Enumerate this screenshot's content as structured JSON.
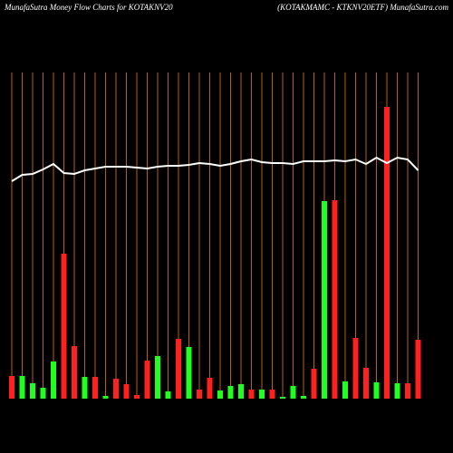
{
  "chart_data": {
    "type": "bar",
    "title": "MunafaSutra  Money Flow  Charts for KOTAKNV20",
    "subtitle": "(KOTAKMAMC -  KTKNV20ETF) MunafaSutra.com",
    "values": [
      25,
      25,
      17,
      12,
      41,
      160,
      58,
      24,
      24,
      3,
      22,
      16,
      4,
      42,
      47,
      8,
      66,
      57,
      10,
      23,
      9,
      14,
      16,
      10,
      10,
      10,
      2,
      14,
      3,
      33,
      218,
      219,
      19,
      67,
      34,
      18,
      322,
      17,
      17,
      65
    ],
    "colors": [
      "#ff2020",
      "#20ff20",
      "#20ff20",
      "#20ff20",
      "#20ff20",
      "#ff2020",
      "#ff2020",
      "#20ff20",
      "#ff2020",
      "#20ff20",
      "#ff2020",
      "#ff2020",
      "#ff2020",
      "#ff2020",
      "#20ff20",
      "#20ff20",
      "#ff2020",
      "#20ff20",
      "#ff2020",
      "#ff2020",
      "#20ff20",
      "#20ff20",
      "#20ff20",
      "#ff2020",
      "#20ff20",
      "#ff2020",
      "#20ff20",
      "#20ff20",
      "#20ff20",
      "#ff2020",
      "#20ff20",
      "#ff2020",
      "#20ff20",
      "#ff2020",
      "#ff2020",
      "#20ff20",
      "#ff2020",
      "#20ff20",
      "#ff2020",
      "#ff2020"
    ],
    "line": {
      "color": "#ffffff",
      "values": [
        240,
        247,
        248,
        253,
        259,
        249,
        248,
        252,
        254,
        256,
        256,
        256,
        255,
        254,
        256,
        257,
        257,
        258,
        260,
        259,
        257,
        259,
        262,
        264,
        261,
        260,
        260,
        259,
        262,
        262,
        262,
        263,
        262,
        264,
        259,
        266,
        260,
        266,
        264,
        252
      ]
    },
    "ylim": [
      0,
      360
    ],
    "grid": true,
    "grid_color": "#b8650a"
  }
}
